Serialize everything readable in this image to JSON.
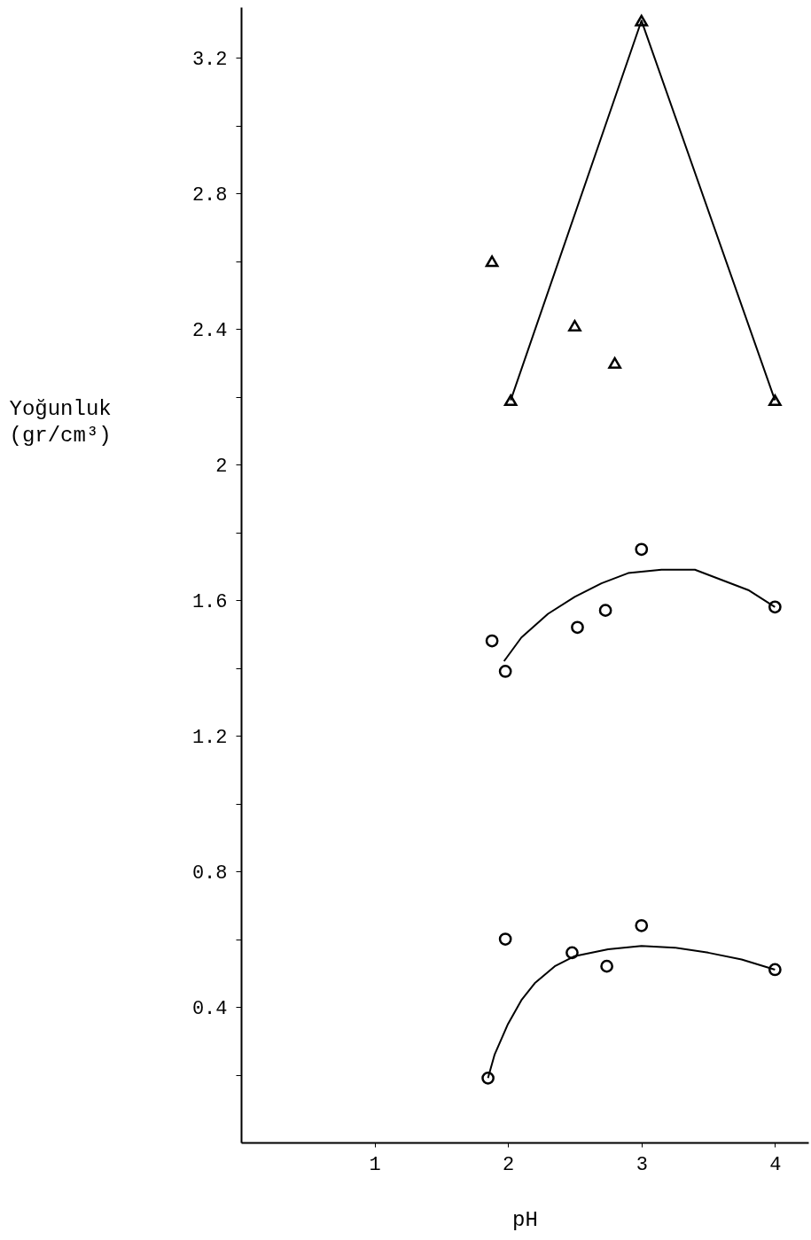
{
  "chart_data": {
    "type": "scatter",
    "xlabel": "pH",
    "ylabel": "Yoğunluk\n(gr/cm³)",
    "xlim": [
      0,
      4.25
    ],
    "ylim": [
      0,
      3.35
    ],
    "xticks": [
      1,
      2,
      3,
      4
    ],
    "yticks": [
      {
        "value": 0.2,
        "label": null
      },
      0.4,
      {
        "value": 0.6,
        "label": null
      },
      0.8,
      {
        "value": 1.0,
        "label": null
      },
      1.2,
      {
        "value": 1.4,
        "label": null
      },
      1.6,
      {
        "value": 1.8,
        "label": null
      },
      2,
      {
        "value": 2.2,
        "label": null
      },
      2.4,
      {
        "value": 2.6,
        "label": null
      },
      2.8,
      {
        "value": 3.0,
        "label": null
      },
      3.2
    ],
    "series": [
      {
        "marker": "triangle",
        "color": "#000000",
        "x": [
          1.88,
          2.02,
          2.5,
          2.8,
          3.0,
          4.0
        ],
        "values": [
          2.6,
          2.19,
          2.41,
          2.3,
          3.31,
          2.19
        ]
      },
      {
        "marker": "circle",
        "color": "#000000",
        "x": [
          1.88,
          1.98,
          2.52,
          2.73,
          3.0,
          4.0
        ],
        "values": [
          1.48,
          1.39,
          1.52,
          1.57,
          1.75,
          1.58
        ]
      },
      {
        "marker": "circle",
        "color": "#000000",
        "x": [
          1.85,
          1.98,
          2.48,
          2.74,
          3.0,
          4.0
        ],
        "values": [
          0.19,
          0.6,
          0.56,
          0.52,
          0.64,
          0.51
        ]
      },
      {
        "type": "line",
        "color": "#000000",
        "x": [
          2.02,
          3.0,
          4.0
        ],
        "values": [
          2.19,
          3.31,
          2.19
        ]
      },
      {
        "type": "line",
        "color": "#000000",
        "x": [
          1.97,
          2.1,
          2.3,
          2.5,
          2.7,
          2.9,
          3.15,
          3.4,
          3.6,
          3.8,
          4.0
        ],
        "values": [
          1.42,
          1.49,
          1.56,
          1.61,
          1.65,
          1.68,
          1.69,
          1.69,
          1.66,
          1.63,
          1.58
        ]
      },
      {
        "type": "line",
        "color": "#000000",
        "x": [
          1.85,
          1.9,
          2.0,
          2.1,
          2.2,
          2.35,
          2.5,
          2.75,
          3.0,
          3.25,
          3.5,
          3.75,
          4.0
        ],
        "values": [
          0.19,
          0.26,
          0.35,
          0.42,
          0.47,
          0.52,
          0.55,
          0.57,
          0.58,
          0.575,
          0.56,
          0.54,
          0.51
        ]
      }
    ]
  }
}
